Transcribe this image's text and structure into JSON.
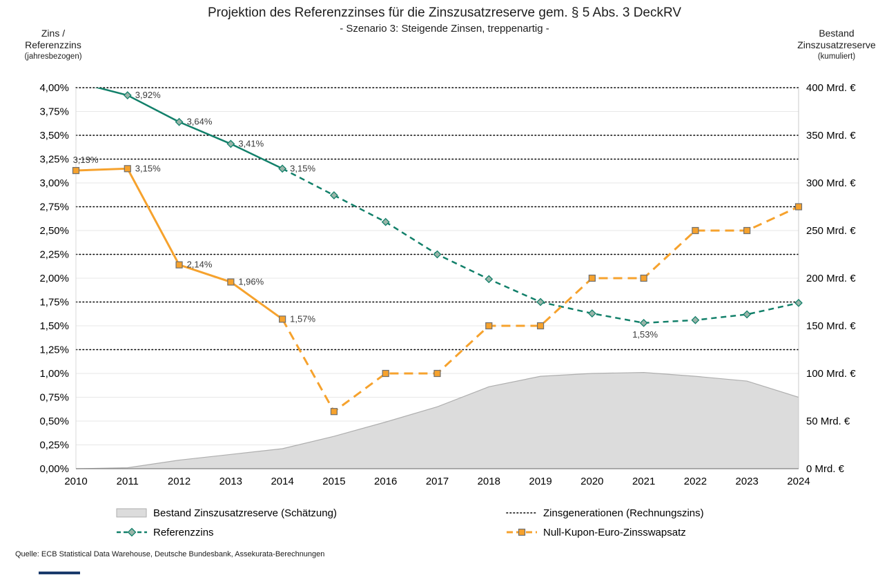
{
  "title": "Projektion des Referenzzinses für die Zinszusatzreserve gem. § 5 Abs. 3 DeckRV",
  "subtitle": "- Szenario 3: Steigende Zinsen, treppenartig -",
  "left_axis_title": {
    "line1": "Zins /",
    "line2": "Referenzzins",
    "sub": "(jahresbezogen)"
  },
  "right_axis_title": {
    "line1": "Bestand",
    "line2": "Zinszusatzreserve",
    "sub": "(kumuliert)"
  },
  "source": "Quelle:  ECB Statistical Data Warehouse, Deutsche Bundesbank,  Assekurata-Berechnungen",
  "legend": {
    "items": [
      {
        "label": "Bestand Zinszusatzreserve (Schätzung)",
        "type": "area"
      },
      {
        "label": "Zinsgenerationen (Rechnungszins)",
        "type": "dotted"
      },
      {
        "label": "Referenzzins",
        "type": "green-line"
      },
      {
        "label": "Null-Kupon-Euro-Zinsswapsatz",
        "type": "orange-line"
      }
    ]
  },
  "colors": {
    "green_line": "#12806a",
    "green_marker_fill": "#9ab5a9",
    "orange_line": "#f6a22d",
    "orange_marker_border": "#6e6e6e",
    "area_fill": "#dcdcdc",
    "area_border": "#aeaeae",
    "grid_minor": "#e7e7e7",
    "reference_line": "#000000",
    "axis_line": "#808080",
    "label_text": "#3a3a3a",
    "footer_bar": "#1a3a6b"
  },
  "chart_data": {
    "type": "combo",
    "x": [
      2010,
      2011,
      2012,
      2013,
      2014,
      2015,
      2016,
      2017,
      2018,
      2019,
      2020,
      2021,
      2022,
      2023,
      2024
    ],
    "x_labels": [
      "2010",
      "2011",
      "2012",
      "2013",
      "2014",
      "2015",
      "2016",
      "2017",
      "2018",
      "2019",
      "2020",
      "2021",
      "2022",
      "2023",
      "2024"
    ],
    "left_axis": {
      "ylim": [
        0,
        4
      ],
      "tick_values": [
        4,
        3.75,
        3.5,
        3.25,
        3,
        2.75,
        2.5,
        2.25,
        2,
        1.75,
        1.5,
        1.25,
        1,
        0.75,
        0.5,
        0.25,
        0
      ],
      "tick_labels": [
        "4,00%",
        "3,75%",
        "3,50%",
        "3,25%",
        "3,00%",
        "2,75%",
        "2,50%",
        "2,25%",
        "2,00%",
        "1,75%",
        "1,50%",
        "1,25%",
        "1,00%",
        "0,75%",
        "0,50%",
        "0,25%",
        "0,00%"
      ]
    },
    "right_axis": {
      "ylim": [
        0,
        400
      ],
      "tick_values": [
        400,
        350,
        300,
        250,
        200,
        150,
        100,
        50,
        0
      ],
      "tick_labels": [
        "400 Mrd. €",
        "350 Mrd. €",
        "300 Mrd. €",
        "250 Mrd. €",
        "200 Mrd. €",
        "150 Mrd. €",
        "100 Mrd. €",
        "50 Mrd. €",
        "0 Mrd. €"
      ]
    },
    "series": [
      {
        "name": "Bestand Zinszusatzreserve (Schätzung)",
        "type": "area",
        "axis": "right",
        "values": [
          0,
          1,
          9,
          15,
          21,
          34,
          49,
          65,
          86,
          97,
          100,
          101,
          97,
          92,
          75
        ]
      },
      {
        "name": "Referenzzins",
        "type": "line",
        "axis": "left",
        "solid_until_index": 4,
        "values": [
          4.06,
          3.92,
          3.64,
          3.41,
          3.15,
          2.87,
          2.59,
          2.25,
          1.99,
          1.75,
          1.63,
          1.53,
          1.56,
          1.62,
          1.74
        ],
        "point_labels": [
          {
            "year": 2011,
            "text": "3,92%",
            "placement": "right"
          },
          {
            "year": 2012,
            "text": "3,64%",
            "placement": "right"
          },
          {
            "year": 2013,
            "text": "3,41%",
            "placement": "right"
          },
          {
            "year": 2014,
            "text": "3,15%",
            "placement": "right"
          },
          {
            "year": 2021,
            "text": "1,53%",
            "placement": "below"
          }
        ]
      },
      {
        "name": "Null-Kupon-Euro-Zinsswapsatz",
        "type": "line",
        "axis": "left",
        "solid_until_index": 4,
        "values": [
          3.13,
          3.15,
          2.14,
          1.96,
          1.57,
          0.6,
          1.0,
          1.0,
          1.5,
          1.5,
          2.0,
          2.0,
          2.5,
          2.5,
          2.75
        ],
        "point_labels": [
          {
            "year": 2010,
            "text": "3,13%",
            "placement": "above"
          },
          {
            "year": 2011,
            "text": "3,15%",
            "placement": "right"
          },
          {
            "year": 2012,
            "text": "2,14%",
            "placement": "right"
          },
          {
            "year": 2013,
            "text": "1,96%",
            "placement": "right"
          },
          {
            "year": 2014,
            "text": "1,57%",
            "placement": "right"
          }
        ]
      }
    ],
    "reference_lines": {
      "name": "Zinsgenerationen (Rechnungszins)",
      "levels": [
        4.0,
        3.5,
        3.25,
        2.75,
        2.25,
        1.75,
        1.25
      ]
    },
    "grid": "horizontal",
    "legend_position": "bottom"
  }
}
